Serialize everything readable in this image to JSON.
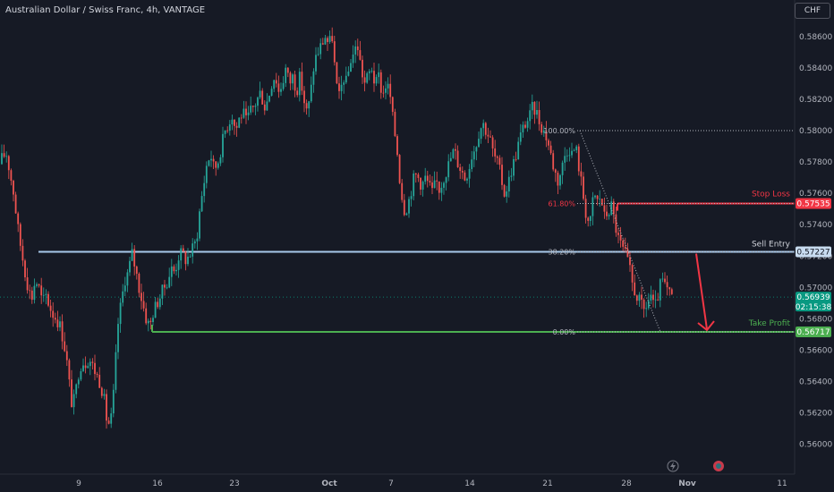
{
  "header": {
    "title": "Australian Dollar / Swiss Franc, 4h, VANTAGE",
    "currency_button": "CHF"
  },
  "icons": {
    "bolt": "lightning-icon",
    "snapshot": "snapshot-icon"
  },
  "colors": {
    "background": "#161a25",
    "up": "#26a69a",
    "down": "#ef5350",
    "grid": "#1f2330",
    "axis_text": "#b2b5be",
    "sell_entry": "#a8c9ea",
    "stop_loss": "#f23645",
    "take_profit": "#4caf50",
    "fib": "#b2b5be",
    "arrow": "#f23645",
    "price_tag": "#089981"
  },
  "chart_data": {
    "type": "candlestick",
    "title": "Australian Dollar / Swiss Franc, 4h, VANTAGE",
    "ylim": [
      0.5593,
      0.5873
    ],
    "y_ticks": [
      "0.58600",
      "0.58400",
      "0.58200",
      "0.58000",
      "0.57800",
      "0.57600",
      "0.57400",
      "0.57200",
      "0.57000",
      "0.56800",
      "0.56600",
      "0.56400",
      "0.56200",
      "0.56000"
    ],
    "x_ticks": [
      "9",
      "16",
      "23",
      "Oct",
      "7",
      "14",
      "21",
      "28",
      "Nov",
      "11"
    ],
    "grid": false,
    "levels": [
      {
        "name": "Stop Loss",
        "value": 0.57535
      },
      {
        "name": "Sell Entry",
        "value": 0.57227
      },
      {
        "name": "Take Profit",
        "value": 0.56717
      }
    ],
    "current_price": {
      "value": 0.56939,
      "countdown": "02:15:38"
    },
    "fibonacci": [
      {
        "label": "100.00%",
        "value": 0.58
      },
      {
        "label": "61.80%",
        "value": 0.57535
      },
      {
        "label": "38.20%",
        "value": 0.57227
      },
      {
        "label": "0.00%",
        "value": 0.56717
      }
    ],
    "price_path": [
      [
        0,
        0.5776
      ],
      [
        6,
        0.5784
      ],
      [
        10,
        0.5785
      ],
      [
        14,
        0.5772
      ],
      [
        18,
        0.576
      ],
      [
        22,
        0.574
      ],
      [
        26,
        0.5725
      ],
      [
        30,
        0.5712
      ],
      [
        34,
        0.57
      ],
      [
        38,
        0.5693
      ],
      [
        42,
        0.5705
      ],
      [
        46,
        0.57
      ],
      [
        50,
        0.569
      ],
      [
        54,
        0.5695
      ],
      [
        58,
        0.5688
      ],
      [
        62,
        0.5683
      ],
      [
        66,
        0.568
      ],
      [
        70,
        0.5675
      ],
      [
        74,
        0.5665
      ],
      [
        78,
        0.565
      ],
      [
        82,
        0.5627
      ],
      [
        86,
        0.5628
      ],
      [
        90,
        0.5645
      ],
      [
        94,
        0.5653
      ],
      [
        98,
        0.5652
      ],
      [
        102,
        0.5655
      ],
      [
        106,
        0.565
      ],
      [
        110,
        0.5645
      ],
      [
        114,
        0.564
      ],
      [
        118,
        0.5632
      ],
      [
        122,
        0.5615
      ],
      [
        126,
        0.5612
      ],
      [
        130,
        0.5635
      ],
      [
        134,
        0.5675
      ],
      [
        138,
        0.569
      ],
      [
        142,
        0.5705
      ],
      [
        146,
        0.571
      ],
      [
        150,
        0.5722
      ],
      [
        154,
        0.5712
      ],
      [
        158,
        0.57
      ],
      [
        162,
        0.569
      ],
      [
        166,
        0.568
      ],
      [
        170,
        0.5675
      ],
      [
        174,
        0.5685
      ],
      [
        178,
        0.569
      ],
      [
        182,
        0.5695
      ],
      [
        186,
        0.57
      ],
      [
        190,
        0.5705
      ],
      [
        194,
        0.5712
      ],
      [
        198,
        0.571
      ],
      [
        202,
        0.572
      ],
      [
        206,
        0.5722
      ],
      [
        210,
        0.5718
      ],
      [
        214,
        0.572
      ],
      [
        218,
        0.5725
      ],
      [
        222,
        0.573
      ],
      [
        226,
        0.575
      ],
      [
        230,
        0.5765
      ],
      [
        234,
        0.578
      ],
      [
        238,
        0.5785
      ],
      [
        242,
        0.5775
      ],
      [
        246,
        0.578
      ],
      [
        250,
        0.579
      ],
      [
        254,
        0.58
      ],
      [
        258,
        0.5805
      ],
      [
        262,
        0.581
      ],
      [
        266,
        0.58
      ],
      [
        270,
        0.5808
      ],
      [
        274,
        0.5812
      ],
      [
        278,
        0.5805
      ],
      [
        282,
        0.5812
      ],
      [
        286,
        0.5815
      ],
      [
        290,
        0.582
      ],
      [
        294,
        0.5825
      ],
      [
        298,
        0.5815
      ],
      [
        302,
        0.582
      ],
      [
        306,
        0.583
      ],
      [
        310,
        0.5836
      ],
      [
        314,
        0.5825
      ],
      [
        318,
        0.583
      ],
      [
        322,
        0.584
      ],
      [
        326,
        0.583
      ],
      [
        330,
        0.5835
      ],
      [
        334,
        0.5825
      ],
      [
        338,
        0.5835
      ],
      [
        342,
        0.582
      ],
      [
        346,
        0.581
      ],
      [
        350,
        0.5825
      ],
      [
        354,
        0.5845
      ],
      [
        358,
        0.585
      ],
      [
        362,
        0.5855
      ],
      [
        366,
        0.586
      ],
      [
        370,
        0.5855
      ],
      [
        374,
        0.586
      ],
      [
        378,
        0.583
      ],
      [
        382,
        0.582
      ],
      [
        386,
        0.5835
      ],
      [
        390,
        0.583
      ],
      [
        394,
        0.5845
      ],
      [
        398,
        0.585
      ],
      [
        402,
        0.5855
      ],
      [
        406,
        0.584
      ],
      [
        410,
        0.583
      ],
      [
        414,
        0.5835
      ],
      [
        418,
        0.584
      ],
      [
        422,
        0.5828
      ],
      [
        426,
        0.5835
      ],
      [
        430,
        0.5822
      ],
      [
        434,
        0.583
      ],
      [
        438,
        0.5825
      ],
      [
        442,
        0.5805
      ],
      [
        446,
        0.579
      ],
      [
        450,
        0.5765
      ],
      [
        454,
        0.575
      ],
      [
        458,
        0.5752
      ],
      [
        462,
        0.5762
      ],
      [
        466,
        0.5772
      ],
      [
        470,
        0.577
      ],
      [
        474,
        0.5765
      ],
      [
        478,
        0.577
      ],
      [
        482,
        0.5765
      ],
      [
        486,
        0.576
      ],
      [
        490,
        0.5768
      ],
      [
        494,
        0.5762
      ],
      [
        498,
        0.577
      ],
      [
        502,
        0.5775
      ],
      [
        506,
        0.5782
      ],
      [
        510,
        0.5788
      ],
      [
        514,
        0.578
      ],
      [
        518,
        0.5775
      ],
      [
        522,
        0.577
      ],
      [
        526,
        0.5775
      ],
      [
        530,
        0.5785
      ],
      [
        534,
        0.579
      ],
      [
        538,
        0.58
      ],
      [
        542,
        0.5805
      ],
      [
        546,
        0.58
      ],
      [
        550,
        0.5795
      ],
      [
        554,
        0.5785
      ],
      [
        558,
        0.578
      ],
      [
        562,
        0.5772
      ],
      [
        566,
        0.576
      ],
      [
        570,
        0.5765
      ],
      [
        574,
        0.5775
      ],
      [
        578,
        0.5782
      ],
      [
        582,
        0.5792
      ],
      [
        586,
        0.58
      ],
      [
        590,
        0.5805
      ],
      [
        594,
        0.5808
      ],
      [
        598,
        0.5815
      ],
      [
        602,
        0.5812
      ],
      [
        606,
        0.5805
      ],
      [
        610,
        0.58
      ],
      [
        614,
        0.5795
      ],
      [
        618,
        0.5785
      ],
      [
        622,
        0.5775
      ],
      [
        626,
        0.5768
      ],
      [
        630,
        0.5775
      ],
      [
        634,
        0.5785
      ],
      [
        638,
        0.579
      ],
      [
        642,
        0.5785
      ],
      [
        646,
        0.579
      ],
      [
        650,
        0.5775
      ],
      [
        654,
        0.576
      ],
      [
        658,
        0.5745
      ],
      [
        662,
        0.574
      ],
      [
        666,
        0.576
      ],
      [
        670,
        0.5755
      ],
      [
        674,
        0.5758
      ],
      [
        678,
        0.5745
      ],
      [
        682,
        0.5748
      ],
      [
        686,
        0.5752
      ],
      [
        690,
        0.574
      ],
      [
        694,
        0.573
      ],
      [
        698,
        0.5725
      ],
      [
        702,
        0.572
      ],
      [
        706,
        0.5712
      ],
      [
        710,
        0.57
      ],
      [
        714,
        0.5695
      ],
      [
        718,
        0.569
      ],
      [
        722,
        0.5685
      ],
      [
        726,
        0.569
      ],
      [
        730,
        0.5695
      ],
      [
        734,
        0.5685
      ],
      [
        738,
        0.5695
      ],
      [
        742,
        0.5705
      ],
      [
        746,
        0.57
      ],
      [
        750,
        0.5696
      ],
      [
        752,
        0.5694
      ]
    ]
  }
}
